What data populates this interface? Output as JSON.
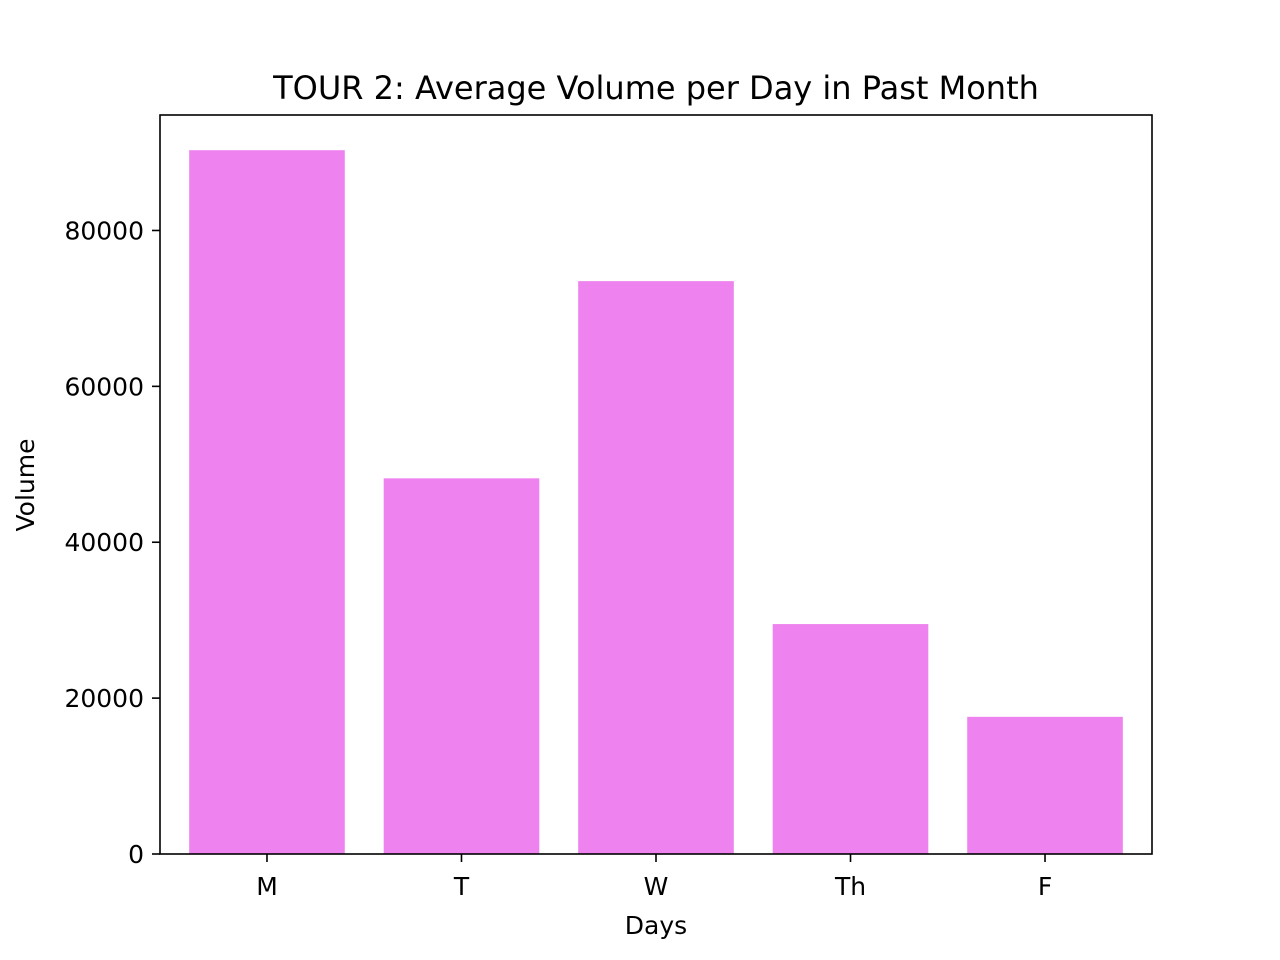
{
  "chart_data": {
    "type": "bar",
    "title": "TOUR 2: Average Volume per Day in Past Month",
    "xlabel": "Days",
    "ylabel": "Volume",
    "categories": [
      "M",
      "T",
      "W",
      "Th",
      "F"
    ],
    "values": [
      90300,
      48200,
      73500,
      29500,
      17600
    ],
    "ylim": [
      0,
      94815
    ],
    "yticks": [
      0,
      20000,
      40000,
      60000,
      80000
    ],
    "ytick_labels": [
      "0",
      "20000",
      "40000",
      "60000",
      "80000"
    ],
    "bar_color": "#ee82ee",
    "grid": false,
    "legend": "none"
  }
}
